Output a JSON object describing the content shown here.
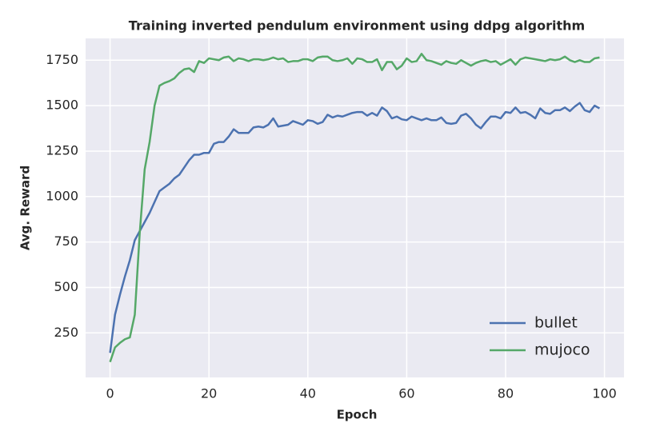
{
  "chart_data": {
    "type": "line",
    "title": "Training inverted pendulum environment using ddpg algorithm",
    "x_label": "Epoch",
    "y_label": "Avg. Reward",
    "x": [
      0,
      1,
      2,
      3,
      4,
      5,
      6,
      7,
      8,
      9,
      10,
      11,
      12,
      13,
      14,
      15,
      16,
      17,
      18,
      19,
      20,
      21,
      22,
      23,
      24,
      25,
      26,
      27,
      28,
      29,
      30,
      31,
      32,
      33,
      34,
      35,
      36,
      37,
      38,
      39,
      40,
      41,
      42,
      43,
      44,
      45,
      46,
      47,
      48,
      49,
      50,
      51,
      52,
      53,
      54,
      55,
      56,
      57,
      58,
      59,
      60,
      61,
      62,
      63,
      64,
      65,
      66,
      67,
      68,
      69,
      70,
      71,
      72,
      73,
      74,
      75,
      76,
      77,
      78,
      79,
      80,
      81,
      82,
      83,
      84,
      85,
      86,
      87,
      88,
      89,
      90,
      91,
      92,
      93,
      94,
      95,
      96,
      97,
      98,
      99
    ],
    "series": [
      {
        "name": "bullet",
        "color": "#4c72b0",
        "values": [
          140,
          350,
          460,
          560,
          650,
          760,
          810,
          860,
          910,
          970,
          1030,
          1050,
          1070,
          1100,
          1120,
          1160,
          1200,
          1230,
          1230,
          1240,
          1240,
          1290,
          1300,
          1300,
          1330,
          1370,
          1350,
          1350,
          1350,
          1380,
          1385,
          1380,
          1395,
          1430,
          1385,
          1390,
          1395,
          1415,
          1405,
          1395,
          1420,
          1415,
          1400,
          1410,
          1450,
          1435,
          1445,
          1440,
          1450,
          1460,
          1465,
          1465,
          1445,
          1460,
          1445,
          1490,
          1470,
          1430,
          1440,
          1425,
          1420,
          1440,
          1430,
          1420,
          1430,
          1420,
          1420,
          1435,
          1405,
          1400,
          1405,
          1445,
          1455,
          1430,
          1395,
          1375,
          1410,
          1440,
          1440,
          1430,
          1465,
          1460,
          1490,
          1460,
          1465,
          1450,
          1430,
          1485,
          1460,
          1455,
          1475,
          1475,
          1490,
          1470,
          1495,
          1515,
          1475,
          1465,
          1500,
          1485
        ]
      },
      {
        "name": "mujoco",
        "color": "#55a868",
        "values": [
          90,
          170,
          195,
          215,
          225,
          350,
          800,
          1150,
          1300,
          1500,
          1610,
          1625,
          1635,
          1650,
          1680,
          1700,
          1705,
          1685,
          1745,
          1735,
          1760,
          1755,
          1750,
          1765,
          1770,
          1745,
          1760,
          1755,
          1745,
          1755,
          1755,
          1750,
          1755,
          1765,
          1755,
          1760,
          1740,
          1745,
          1745,
          1755,
          1755,
          1745,
          1765,
          1770,
          1770,
          1750,
          1745,
          1750,
          1760,
          1730,
          1760,
          1755,
          1740,
          1740,
          1755,
          1695,
          1740,
          1740,
          1700,
          1720,
          1760,
          1740,
          1745,
          1785,
          1750,
          1745,
          1735,
          1725,
          1745,
          1735,
          1730,
          1750,
          1735,
          1720,
          1735,
          1745,
          1750,
          1740,
          1745,
          1725,
          1740,
          1755,
          1725,
          1755,
          1765,
          1760,
          1755,
          1750,
          1745,
          1755,
          1750,
          1755,
          1770,
          1750,
          1740,
          1750,
          1740,
          1740,
          1760,
          1765
        ]
      }
    ],
    "xlim": [
      -4.95,
      103.95
    ],
    "ylim": [
      5,
      1870
    ],
    "xticks": [
      0,
      20,
      40,
      60,
      80,
      100
    ],
    "yticks": [
      250,
      500,
      750,
      1000,
      1250,
      1500,
      1750
    ],
    "grid": true,
    "legend": "lower right"
  }
}
